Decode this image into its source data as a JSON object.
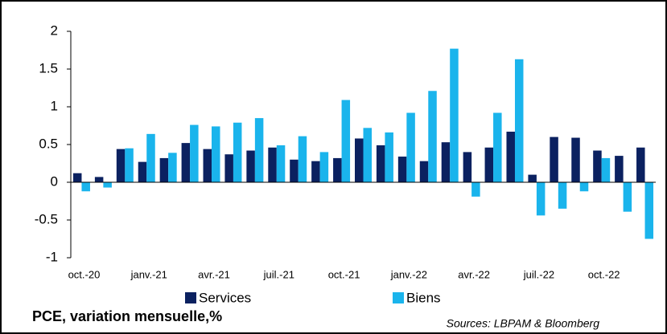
{
  "chart_data": {
    "type": "bar",
    "title": "PCE, variation mensuelle,%",
    "source": "Sources: LBPAM & Bloomberg",
    "categories": [
      "oct.-20",
      null,
      null,
      "janv.-21",
      null,
      null,
      "avr.-21",
      null,
      null,
      "juil.-21",
      null,
      null,
      "oct.-21",
      null,
      null,
      "janv.-22",
      null,
      null,
      "avr.-22",
      null,
      null,
      "juil.-22",
      null,
      null,
      "oct.-22",
      null,
      null
    ],
    "series": [
      {
        "name": "Services",
        "color": "#0b2160",
        "values": [
          0.12,
          0.07,
          0.44,
          0.27,
          0.32,
          0.52,
          0.44,
          0.37,
          0.42,
          0.46,
          0.3,
          0.28,
          0.32,
          0.58,
          0.49,
          0.34,
          0.28,
          0.53,
          0.4,
          0.46,
          0.67,
          0.1,
          0.6,
          0.59,
          0.42,
          0.35,
          0.46
        ]
      },
      {
        "name": "Biens",
        "color": "#1ab4ec",
        "values": [
          -0.12,
          -0.07,
          0.45,
          0.64,
          0.39,
          0.76,
          0.74,
          0.79,
          0.85,
          0.49,
          0.61,
          0.4,
          1.09,
          0.72,
          0.66,
          0.92,
          1.21,
          1.77,
          -0.19,
          0.92,
          1.63,
          -0.44,
          -0.35,
          -0.12,
          0.32,
          -0.39,
          -0.75
        ]
      }
    ],
    "ylim": [
      -1,
      2
    ],
    "yticks": [
      -1,
      -0.5,
      0,
      0.5,
      1,
      1.5,
      2
    ]
  }
}
